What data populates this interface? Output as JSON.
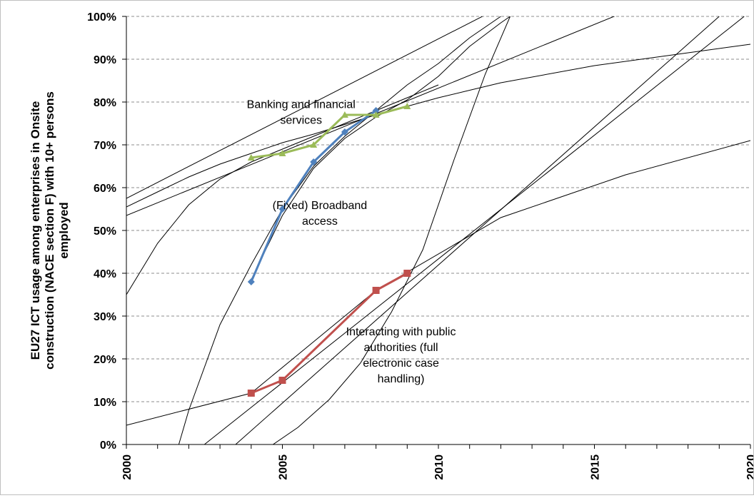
{
  "chart_data": {
    "type": "line",
    "title": "",
    "ylabel_lines": [
      "EU27 ICT usage among enterprises in Onsite",
      "construction (NACE section F) with 10+ persons",
      "employed"
    ],
    "xlabel": "",
    "xlim": [
      2000,
      2020
    ],
    "ylim": [
      0,
      100
    ],
    "x_ticks": [
      "2000",
      "2005",
      "2010",
      "2015",
      "2020"
    ],
    "y_ticks": [
      "0%",
      "10%",
      "20%",
      "30%",
      "40%",
      "50%",
      "60%",
      "70%",
      "80%",
      "90%",
      "100%"
    ],
    "grid": "horizontal dashed",
    "legend": "none",
    "series": [
      {
        "name": "(Fixed) Broadband access",
        "color": "#4f81bd",
        "marker": "diamond",
        "x": [
          2004,
          2005,
          2006,
          2007,
          2008
        ],
        "y": [
          38,
          55,
          66,
          73,
          78
        ]
      },
      {
        "name": "Banking and financial services",
        "color": "#9bbb59",
        "marker": "triangle",
        "x": [
          2004,
          2005,
          2006,
          2007,
          2008,
          2009
        ],
        "y": [
          67,
          68,
          70,
          77,
          77,
          79
        ]
      },
      {
        "name": "Interacting with public authorities (full electronic case handling)",
        "color": "#c0504d",
        "marker": "square",
        "x": [
          2004,
          2005,
          2008,
          2009
        ],
        "y": [
          12,
          15,
          36,
          40
        ]
      }
    ],
    "trendlines": [
      {
        "fit": "linear",
        "color": "#000000",
        "x": [
          2000,
          2020
        ],
        "y": [
          57.5,
          132
        ]
      },
      {
        "fit": "logarithmic",
        "color": "#000000",
        "x": [
          2000,
          2001,
          2002,
          2003,
          2004,
          2005,
          2006,
          2008,
          2010,
          2012,
          2015,
          2018,
          2020
        ],
        "y": [
          55.5,
          59,
          62.5,
          65.5,
          68,
          70.5,
          72.5,
          77,
          81,
          84.5,
          88.5,
          91.5,
          93.5
        ]
      },
      {
        "fit": "linear",
        "color": "#000000",
        "x": [
          2000,
          2020
        ],
        "y": [
          53.5,
          113
        ]
      },
      {
        "fit": "logarithmic",
        "color": "#000000",
        "x": [
          2000,
          2001,
          2002,
          2003,
          2004,
          2005,
          2006,
          2007,
          2008,
          2009,
          2010
        ],
        "y": [
          35,
          47,
          56,
          62,
          66,
          69,
          72,
          75,
          78,
          81,
          84
        ]
      },
      {
        "fit": "polynomial",
        "color": "#000000",
        "x": [
          2004,
          2005,
          2006,
          2007,
          2008,
          2009,
          2010,
          2011,
          2012,
          2012.3,
          2011.5,
          2010.5,
          2009.5,
          2008.5,
          2007.5,
          2006.5,
          2005.5,
          2004.5,
          2003.5,
          2002.5,
          2001.5
        ],
        "y": [
          38.5,
          53.5,
          64.5,
          71.5,
          76.5,
          80.5,
          86,
          93,
          98.5,
          100,
          86.5,
          66.5,
          45.5,
          31,
          19,
          10.5,
          4,
          -1,
          -5,
          -9,
          -12
        ]
      },
      {
        "fit": "linear",
        "color": "#000000",
        "x": [
          2003.5,
          2019
        ],
        "y": [
          0,
          100
        ]
      },
      {
        "fit": "linear",
        "color": "#000000",
        "x": [
          2002.5,
          2019.8
        ],
        "y": [
          0,
          100
        ]
      },
      {
        "fit": "exponential",
        "color": "#000000",
        "x": [
          2000,
          2004,
          2008,
          2012,
          2016,
          2020
        ],
        "y": [
          4.5,
          12,
          36,
          53,
          63,
          71
        ]
      },
      {
        "fit": "polynomial",
        "color": "#000000",
        "x": [
          2001.2,
          2002,
          2003,
          2004,
          2005,
          2006,
          2007,
          2008,
          2009,
          2010,
          2011,
          2012
        ],
        "y": [
          -12,
          8,
          28,
          42,
          55,
          65,
          72,
          78,
          84,
          89,
          95,
          100
        ]
      }
    ],
    "annotations": [
      {
        "lines": [
          "Banking and financial",
          "services"
        ],
        "x": 2005.6,
        "y": 78.6
      },
      {
        "lines": [
          "(Fixed) Broadband",
          "access"
        ],
        "x": 2006.2,
        "y": 55
      },
      {
        "lines": [
          "Interacting with public",
          "authorities (full",
          "electronic case",
          "handling)"
        ],
        "x": 2008.8,
        "y": 25.5
      }
    ]
  }
}
